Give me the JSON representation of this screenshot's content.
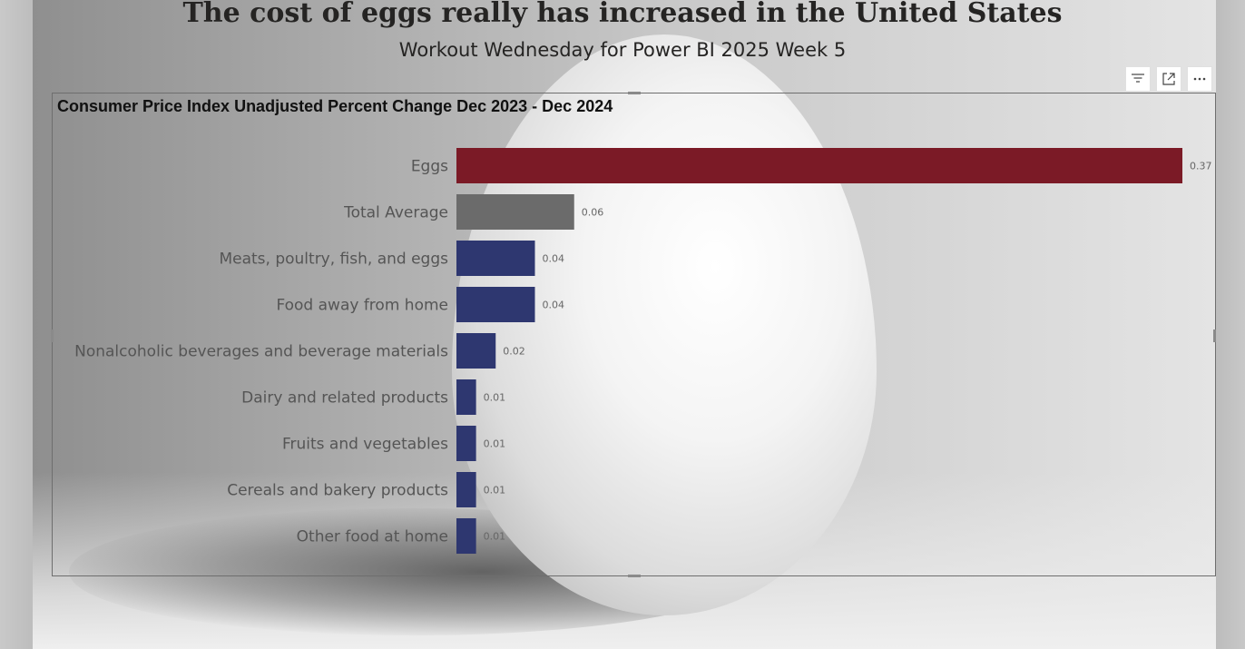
{
  "report": {
    "title": "The cost of eggs really has increased in the United States",
    "subtitle": "Workout Wednesday for Power BI 2025 Week 5"
  },
  "toolbar": {
    "filter_icon": "filter-icon",
    "focus_icon": "focus-mode-icon",
    "more_icon": "more-options-icon"
  },
  "chart_data": {
    "type": "bar",
    "orientation": "horizontal",
    "title": "Consumer Price Index Unadjusted Percent Change Dec 2023 - Dec 2024",
    "categories": [
      "Eggs",
      "Total Average",
      "Meats, poultry, fish, and eggs",
      "Food away from home",
      "Nonalcoholic beverages and beverage materials",
      "Dairy and related products",
      "Fruits and vegetables",
      "Cereals and bakery products",
      "Other food at home"
    ],
    "values": [
      0.37,
      0.06,
      0.04,
      0.04,
      0.02,
      0.01,
      0.01,
      0.01,
      0.01
    ],
    "data_labels": [
      "0.37",
      "0.06",
      "0.04",
      "0.04",
      "0.02",
      "0.01",
      "0.01",
      "0.01",
      "0.01"
    ],
    "colors": [
      "#7b1a26",
      "#6b6b6b",
      "#2e3770",
      "#2e3770",
      "#2e3770",
      "#2e3770",
      "#2e3770",
      "#2e3770",
      "#2e3770"
    ],
    "xlim": [
      0,
      0.37
    ],
    "grid": false,
    "legend": "none"
  }
}
